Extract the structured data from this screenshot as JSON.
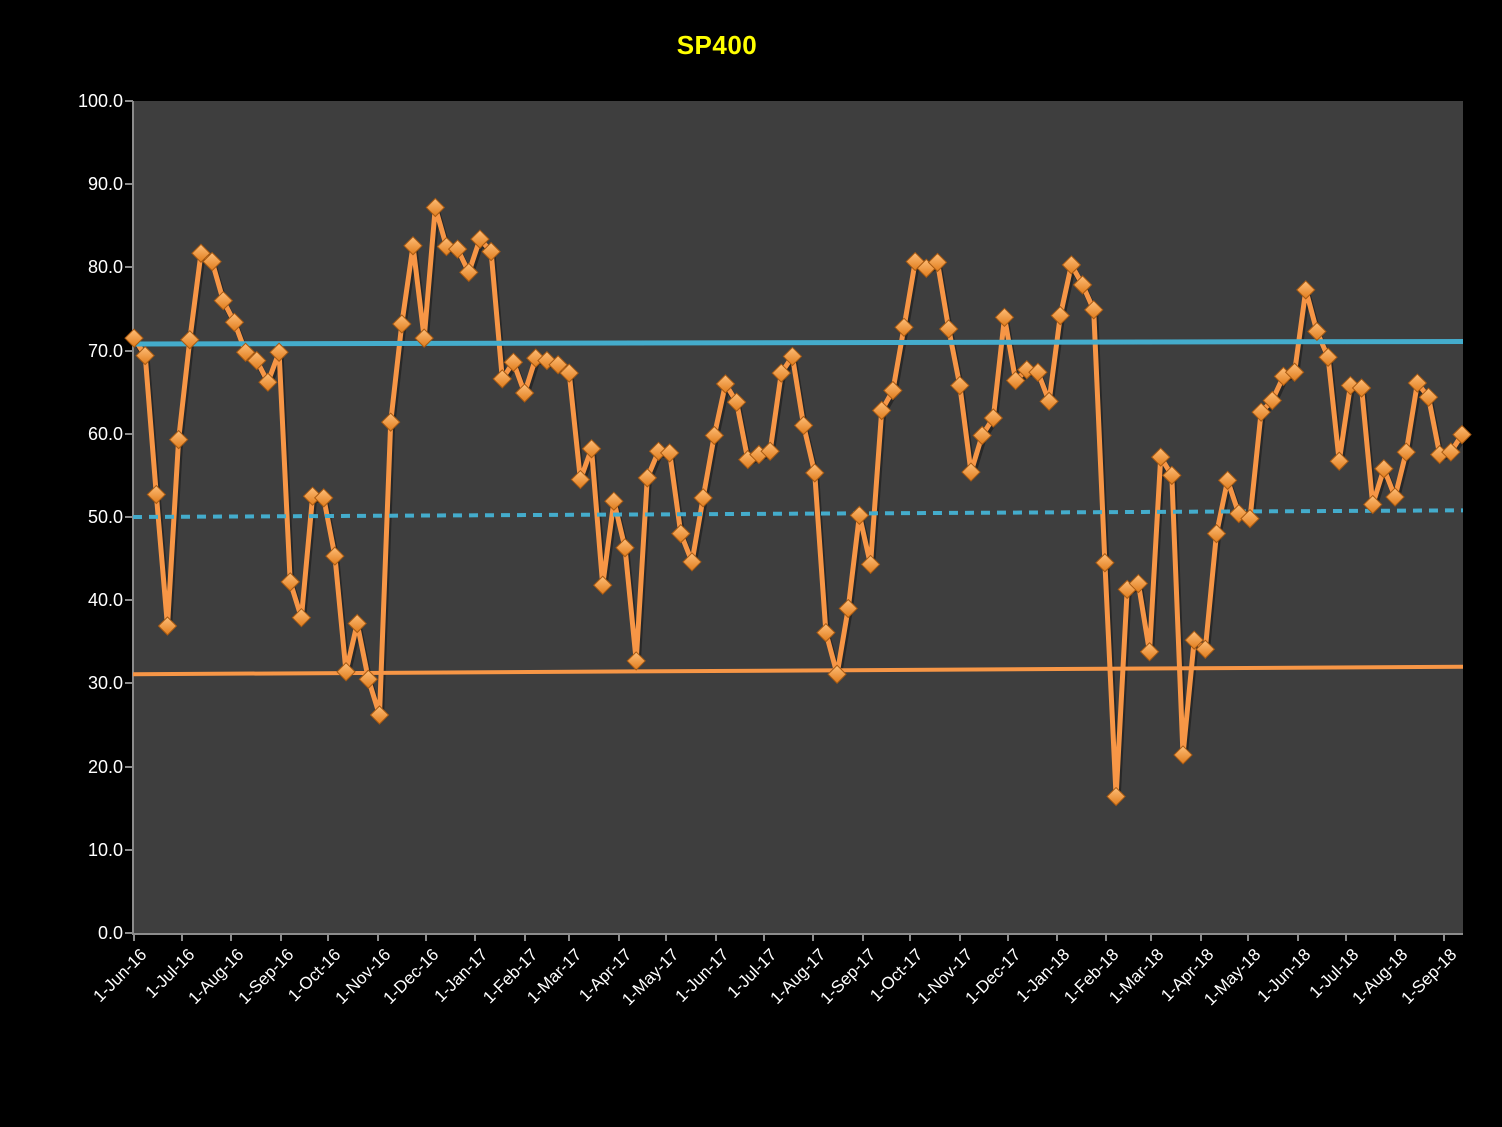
{
  "header": {
    "title": "SP400",
    "title_color": "#FFFF00"
  },
  "axes": {
    "y": {
      "labels": [
        "100.0",
        "90.0",
        "80.0",
        "70.0",
        "60.0",
        "50.0",
        "40.0",
        "30.0",
        "20.0",
        "10.0",
        "0.0"
      ],
      "min": 0,
      "max": 100
    },
    "x": {
      "labels": [
        "1-Jun-16",
        "1-Jul-16",
        "1-Aug-16",
        "1-Sep-16",
        "1-Oct-16",
        "1-Nov-16",
        "1-Dec-16",
        "1-Jan-17",
        "1-Feb-17",
        "1-Mar-17",
        "1-Apr-17",
        "1-May-17",
        "1-Jun-17",
        "1-Jul-17",
        "1-Aug-17",
        "1-Sep-17",
        "1-Oct-17",
        "1-Nov-17",
        "1-Dec-17",
        "1-Jan-18",
        "1-Feb-18",
        "1-Mar-18",
        "1-Apr-18",
        "1-May-18",
        "1-Jun-18",
        "1-Jul-18",
        "1-Aug-18",
        "1-Sep-18"
      ]
    }
  },
  "chart_data": {
    "type": "line",
    "title": "SP400",
    "xlabel": "",
    "ylabel": "",
    "ylim": [
      0,
      100
    ],
    "grid": false,
    "legend": "none",
    "plot_bg": "#3E3E3E",
    "outer_bg": "#000000",
    "x_start_date": "2016-06-01",
    "x_cadence": "weekly",
    "x_tick_labels": [
      "1-Jun-16",
      "1-Jul-16",
      "1-Aug-16",
      "1-Sep-16",
      "1-Oct-16",
      "1-Nov-16",
      "1-Dec-16",
      "1-Jan-17",
      "1-Feb-17",
      "1-Mar-17",
      "1-Apr-17",
      "1-May-17",
      "1-Jun-17",
      "1-Jul-17",
      "1-Aug-17",
      "1-Sep-17",
      "1-Oct-17",
      "1-Nov-17",
      "1-Dec-17",
      "1-Jan-18",
      "1-Feb-18",
      "1-Mar-18",
      "1-Apr-18",
      "1-May-18",
      "1-Jun-18",
      "1-Jul-18",
      "1-Aug-18",
      "1-Sep-18"
    ],
    "series": [
      {
        "name": "SP400",
        "kind": "data",
        "marker": "diamond",
        "line_color": "#F79646",
        "marker_color_light": "#FFBE78",
        "marker_color_dark": "#E07C1C",
        "marker_edge": "#A85A12",
        "values": [
          71.5,
          69.4,
          52.7,
          36.9,
          59.3,
          71.3,
          81.7,
          80.7,
          76.0,
          73.4,
          69.8,
          68.8,
          66.2,
          69.8,
          42.2,
          37.9,
          52.5,
          52.3,
          45.3,
          31.4,
          37.2,
          30.5,
          26.2,
          61.4,
          73.2,
          82.6,
          71.5,
          87.2,
          82.5,
          82.2,
          79.4,
          83.4,
          81.9,
          66.6,
          68.6,
          64.9,
          69.1,
          68.8,
          68.3,
          67.3,
          54.5,
          58.2,
          41.8,
          51.9,
          46.3,
          32.7,
          54.7,
          57.9,
          57.7,
          48.0,
          44.6,
          52.3,
          59.8,
          66.0,
          63.8,
          56.9,
          57.5,
          57.9,
          67.3,
          69.3,
          61.0,
          55.3,
          36.1,
          31.1,
          39.0,
          50.2,
          44.3,
          62.8,
          65.2,
          72.8,
          80.7,
          79.9,
          80.6,
          72.6,
          65.8,
          55.4,
          59.8,
          61.9,
          74.0,
          66.4,
          67.7,
          67.4,
          63.9,
          74.2,
          80.3,
          77.9,
          74.9,
          44.5,
          16.4,
          41.3,
          42.0,
          33.8,
          57.2,
          55.0,
          21.4,
          35.2,
          34.1,
          48.0,
          54.4,
          50.4,
          49.8,
          62.6,
          64.0,
          66.9,
          67.4,
          77.3,
          72.3,
          69.2,
          56.7,
          65.8,
          65.5,
          51.5,
          55.8,
          52.4,
          57.8,
          66.1,
          64.4,
          57.5,
          57.8,
          59.9
        ]
      },
      {
        "name": "upper-reference-line",
        "kind": "reference",
        "style": "solid",
        "color": "#44ACCC",
        "width": 5,
        "y_start": 70.8,
        "y_end": 71.1
      },
      {
        "name": "mid-reference-line",
        "kind": "reference",
        "style": "dotted",
        "color": "#44ACCC",
        "width": 4,
        "y_start": 50.0,
        "y_end": 50.8
      },
      {
        "name": "lower-reference-line",
        "kind": "reference",
        "style": "solid",
        "color": "#F79646",
        "width": 4,
        "y_start": 31.1,
        "y_end": 32.0
      }
    ]
  }
}
